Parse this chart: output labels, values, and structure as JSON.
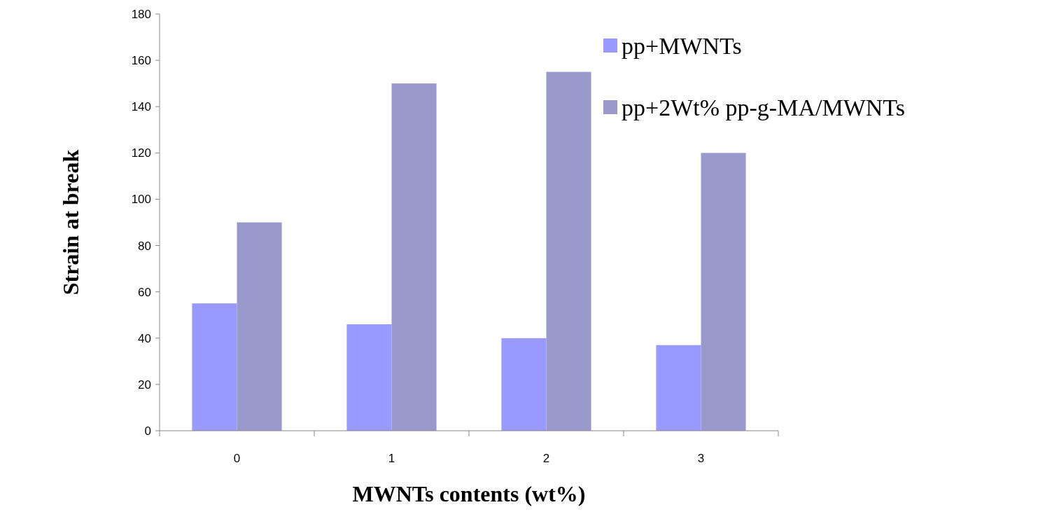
{
  "chart_data": {
    "type": "bar",
    "xlabel": "MWNTs contents (wt%)",
    "ylabel": "Strain at break",
    "categories": [
      "0",
      "1",
      "2",
      "3"
    ],
    "series": [
      {
        "name": "pp+MWNTs",
        "color": "#9999ff",
        "values": [
          55,
          46,
          40,
          37
        ]
      },
      {
        "name": "pp+2Wt% pp-g-MA/MWNTs",
        "color": "#9999cc",
        "values": [
          90,
          150,
          155,
          120
        ]
      }
    ],
    "ylim": [
      0,
      180
    ],
    "yticks": [
      0,
      20,
      40,
      60,
      80,
      100,
      120,
      140,
      160,
      180
    ],
    "grid": false,
    "legend": "top right"
  }
}
